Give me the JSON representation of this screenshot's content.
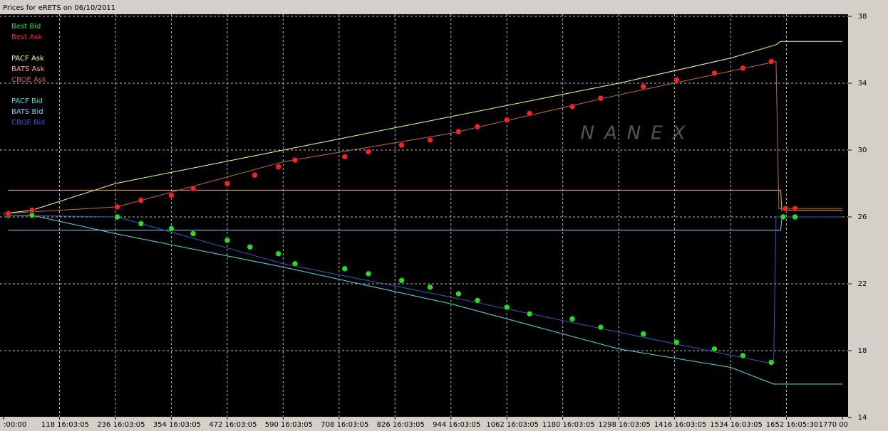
{
  "chart_data": {
    "type": "line",
    "title": "Prices for  eRETS  on  06/10/2011",
    "watermark": "NANEX",
    "xlim": [
      0,
      1770
    ],
    "xticks": [
      {
        "value": 0,
        "label": ":00:00"
      },
      {
        "value": 118,
        "label": "118 16:03:05"
      },
      {
        "value": 236,
        "label": "236 16:03:05"
      },
      {
        "value": 354,
        "label": "354 16:03:05"
      },
      {
        "value": 472,
        "label": "472 16:03:05"
      },
      {
        "value": 590,
        "label": "590 16:03:05"
      },
      {
        "value": 708,
        "label": "708 16:03:05"
      },
      {
        "value": 826,
        "label": "826 16:03:05"
      },
      {
        "value": 944,
        "label": "944 16:03:05"
      },
      {
        "value": 1062,
        "label": "1062 16:03:05"
      },
      {
        "value": 1180,
        "label": "1180 16:03:05"
      },
      {
        "value": 1298,
        "label": "1298 16:03:05"
      },
      {
        "value": 1416,
        "label": "1416 16:03:05"
      },
      {
        "value": 1534,
        "label": "1534 16:03:05"
      },
      {
        "value": 1652,
        "label": "1652 16:05:30"
      },
      {
        "value": 1770,
        "label": "1770 00"
      }
    ],
    "ylim": [
      14,
      38
    ],
    "yticks": [
      14,
      18,
      22,
      26,
      30,
      34,
      38
    ],
    "grid": true,
    "series": [
      {
        "name": "Best Bid",
        "color": "#20e020",
        "type": "scatter",
        "x": [
          10,
          60,
          240,
          290,
          354,
          400,
          472,
          520,
          580,
          615,
          720,
          770,
          840,
          900,
          960,
          1000,
          1062,
          1110,
          1200,
          1260,
          1350,
          1420,
          1500,
          1560,
          1620,
          1645,
          1670
        ],
        "values": [
          26.1,
          26.1,
          26.0,
          25.6,
          25.3,
          25.0,
          24.6,
          24.2,
          23.8,
          23.2,
          22.9,
          22.6,
          22.2,
          21.8,
          21.4,
          21.0,
          20.6,
          20.2,
          19.9,
          19.4,
          19.0,
          18.5,
          18.1,
          17.7,
          17.3,
          26.0,
          26.0
        ]
      },
      {
        "name": "Best Ask",
        "color": "#ff2020",
        "type": "scatter",
        "x": [
          10,
          60,
          240,
          290,
          354,
          400,
          472,
          530,
          580,
          615,
          720,
          770,
          840,
          900,
          960,
          1000,
          1062,
          1110,
          1200,
          1260,
          1350,
          1420,
          1500,
          1560,
          1620,
          1650,
          1670
        ],
        "values": [
          26.2,
          26.4,
          26.6,
          27.0,
          27.3,
          27.7,
          28.0,
          28.5,
          29.0,
          29.4,
          29.6,
          29.9,
          30.3,
          30.6,
          31.1,
          31.4,
          31.8,
          32.2,
          32.6,
          33.1,
          33.8,
          34.2,
          34.6,
          34.9,
          35.3,
          26.5,
          26.5
        ]
      },
      {
        "name": "PACF Ask",
        "color": "#ffff60",
        "x": [
          0,
          60,
          236,
          590,
          944,
          1298,
          1534,
          1630,
          1640,
          1770
        ],
        "values": [
          26.2,
          26.4,
          28.0,
          30.0,
          32.0,
          34.0,
          35.5,
          36.3,
          36.5,
          36.5
        ]
      },
      {
        "name": "BATS Ask",
        "color": "#ffb060",
        "x": [
          10,
          1640,
          1642,
          1770
        ],
        "values": [
          27.6,
          27.6,
          26.4,
          26.4
        ]
      },
      {
        "name": "CBOE Ask",
        "color": "#c07030",
        "x": [
          0,
          240,
          590,
          944,
          1298,
          1630,
          1636,
          1770
        ],
        "values": [
          26.2,
          26.6,
          29.3,
          31.0,
          33.3,
          35.3,
          26.5,
          26.5
        ]
      },
      {
        "name": "PACF Bid",
        "color": "#40e0e0",
        "x": [
          0,
          60,
          236,
          590,
          944,
          1298,
          1534,
          1625,
          1770
        ],
        "values": [
          26.1,
          26.1,
          25.0,
          23.0,
          20.8,
          18.1,
          17.0,
          16.0,
          16.0
        ]
      },
      {
        "name": "BATS Bid",
        "color": "#80d0ff",
        "x": [
          10,
          1640,
          1642,
          1770
        ],
        "values": [
          25.2,
          25.2,
          26.0,
          26.0
        ]
      },
      {
        "name": "CBOE Bid",
        "color": "#2060d0",
        "x": [
          0,
          240,
          590,
          944,
          1298,
          1625,
          1630,
          1770
        ],
        "values": [
          26.1,
          26.0,
          23.2,
          21.2,
          19.1,
          17.2,
          26.0,
          26.0
        ]
      }
    ]
  }
}
